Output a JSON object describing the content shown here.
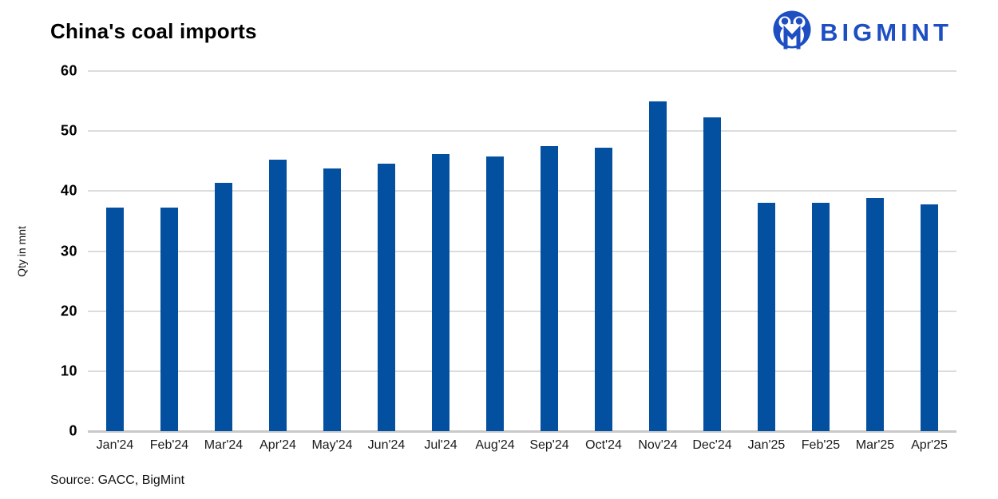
{
  "header": {
    "title": "China's coal imports",
    "logo": {
      "text": "BIGMINT",
      "icon": "bigmint-circle-m-icon"
    }
  },
  "footer": {
    "source_text": "Source: GACC, BigMint"
  },
  "colors": {
    "bar": "#0450A0",
    "logo_blue": "#1D4EC2",
    "gridline": "#DCDCDC",
    "axis_line": "#C9C9C9"
  },
  "chart_data": {
    "type": "bar",
    "title": "China's coal imports",
    "xlabel": "",
    "ylabel": "Qty in mnt",
    "unit": "mnt",
    "ylim": [
      0,
      60
    ],
    "yticks": [
      0,
      10,
      20,
      30,
      40,
      50,
      60
    ],
    "grid": "horizontal",
    "legend": "none",
    "bar_color": "#0450A0",
    "categories": [
      "Jan'24",
      "Feb'24",
      "Mar'24",
      "Apr'24",
      "May'24",
      "Jun'24",
      "Jul'24",
      "Aug'24",
      "Sep'24",
      "Oct'24",
      "Nov'24",
      "Dec'24",
      "Jan'25",
      "Feb'25",
      "Mar'25",
      "Apr'25"
    ],
    "values": [
      37.3,
      37.3,
      41.4,
      45.2,
      43.8,
      44.6,
      46.2,
      45.8,
      47.5,
      47.2,
      55.0,
      52.3,
      38.1,
      38.1,
      38.8,
      37.8
    ]
  }
}
